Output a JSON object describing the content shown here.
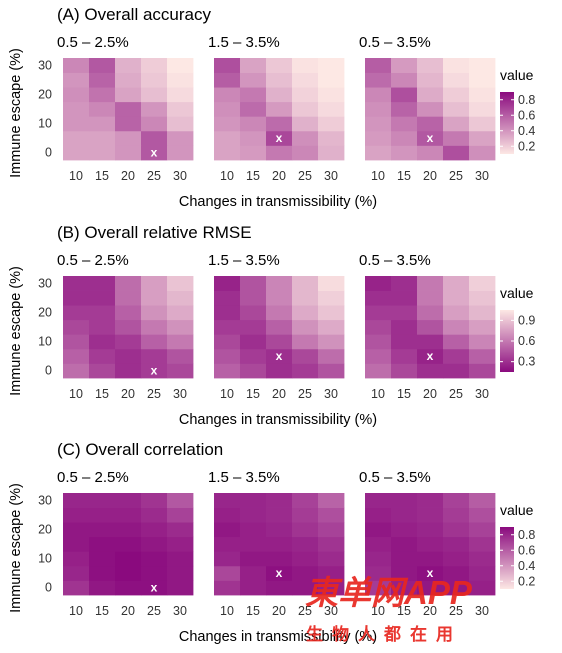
{
  "chart_data": [
    {
      "type": "heatmap",
      "title": "(A) Overall accuracy",
      "xlabel": "Changes in transmissibility (%)",
      "ylabel": "Immune escape (%)",
      "x": [
        "10",
        "15",
        "20",
        "25",
        "30"
      ],
      "y": [
        "0",
        "5",
        "10",
        "15",
        "20",
        "25",
        "30"
      ],
      "yticks": [
        "0",
        "10",
        "20",
        "30"
      ],
      "legend_title": "value",
      "legend_ticks": [
        "0.2",
        "0.4",
        "0.6",
        "0.8"
      ],
      "legend_range": [
        0.1,
        0.9
      ],
      "color_low": "#fde8e4",
      "color_high": "#8a0a7e",
      "marker_symbol": "x",
      "panels": [
        {
          "facet": "0.5 – 2.5%",
          "marker": {
            "x": "25",
            "y": "0"
          },
          "values": [
            [
              0.35,
              0.35,
              0.4,
              0.62,
              0.4
            ],
            [
              0.35,
              0.35,
              0.4,
              0.62,
              0.4
            ],
            [
              0.4,
              0.4,
              0.58,
              0.45,
              0.25
            ],
            [
              0.4,
              0.45,
              0.58,
              0.4,
              0.22
            ],
            [
              0.42,
              0.52,
              0.35,
              0.25,
              0.15
            ],
            [
              0.4,
              0.58,
              0.32,
              0.22,
              0.12
            ],
            [
              0.45,
              0.62,
              0.3,
              0.2,
              0.1
            ]
          ]
        },
        {
          "facet": "1.5 – 3.5%",
          "marker": {
            "x": "20",
            "y": "5"
          },
          "values": [
            [
              0.35,
              0.38,
              0.5,
              0.45,
              0.3
            ],
            [
              0.35,
              0.4,
              0.68,
              0.42,
              0.28
            ],
            [
              0.4,
              0.45,
              0.55,
              0.3,
              0.2
            ],
            [
              0.42,
              0.55,
              0.38,
              0.22,
              0.15
            ],
            [
              0.45,
              0.5,
              0.3,
              0.18,
              0.12
            ],
            [
              0.6,
              0.4,
              0.25,
              0.15,
              0.1
            ],
            [
              0.65,
              0.35,
              0.22,
              0.12,
              0.1
            ]
          ]
        },
        {
          "facet": "0.5 – 3.5%",
          "marker": {
            "x": "20",
            "y": "5"
          },
          "values": [
            [
              0.35,
              0.4,
              0.45,
              0.65,
              0.42
            ],
            [
              0.38,
              0.45,
              0.62,
              0.5,
              0.35
            ],
            [
              0.4,
              0.5,
              0.58,
              0.35,
              0.22
            ],
            [
              0.42,
              0.58,
              0.42,
              0.25,
              0.15
            ],
            [
              0.45,
              0.65,
              0.32,
              0.2,
              0.12
            ],
            [
              0.55,
              0.45,
              0.28,
              0.15,
              0.1
            ],
            [
              0.6,
              0.38,
              0.25,
              0.12,
              0.1
            ]
          ]
        }
      ]
    },
    {
      "type": "heatmap",
      "title": "(B) Overall relative RMSE",
      "xlabel": "Changes in transmissibility (%)",
      "ylabel": "Immune escape (%)",
      "x": [
        "10",
        "15",
        "20",
        "25",
        "30"
      ],
      "y": [
        "0",
        "5",
        "10",
        "15",
        "20",
        "25",
        "30"
      ],
      "yticks": [
        "0",
        "10",
        "20",
        "30"
      ],
      "legend_title": "value",
      "legend_ticks": [
        "0.3",
        "0.6",
        "0.9"
      ],
      "legend_range": [
        0.15,
        1.05
      ],
      "color_low": "#8a0a7e",
      "color_high": "#fde8e4",
      "marker_symbol": "x",
      "panels": [
        {
          "facet": "0.5 – 2.5%",
          "marker": {
            "x": "25",
            "y": "0"
          },
          "values": [
            [
              0.55,
              0.4,
              0.3,
              0.35,
              0.4
            ],
            [
              0.5,
              0.35,
              0.3,
              0.35,
              0.45
            ],
            [
              0.45,
              0.3,
              0.35,
              0.5,
              0.6
            ],
            [
              0.4,
              0.35,
              0.45,
              0.6,
              0.7
            ],
            [
              0.35,
              0.35,
              0.5,
              0.7,
              0.8
            ],
            [
              0.3,
              0.3,
              0.55,
              0.75,
              0.85
            ],
            [
              0.3,
              0.3,
              0.55,
              0.75,
              0.9
            ]
          ]
        },
        {
          "facet": "1.5 – 3.5%",
          "marker": {
            "x": "20",
            "y": "5"
          },
          "values": [
            [
              0.5,
              0.4,
              0.3,
              0.35,
              0.45
            ],
            [
              0.45,
              0.35,
              0.3,
              0.4,
              0.55
            ],
            [
              0.4,
              0.3,
              0.4,
              0.6,
              0.7
            ],
            [
              0.35,
              0.35,
              0.5,
              0.7,
              0.8
            ],
            [
              0.3,
              0.4,
              0.6,
              0.8,
              0.9
            ],
            [
              0.3,
              0.45,
              0.65,
              0.85,
              0.95
            ],
            [
              0.25,
              0.45,
              0.65,
              0.85,
              1.0
            ]
          ]
        },
        {
          "facet": "0.5 – 3.5%",
          "marker": {
            "x": "20",
            "y": "5"
          },
          "values": [
            [
              0.55,
              0.4,
              0.3,
              0.3,
              0.4
            ],
            [
              0.5,
              0.35,
              0.25,
              0.35,
              0.5
            ],
            [
              0.45,
              0.3,
              0.3,
              0.5,
              0.65
            ],
            [
              0.4,
              0.3,
              0.45,
              0.65,
              0.75
            ],
            [
              0.35,
              0.35,
              0.55,
              0.75,
              0.85
            ],
            [
              0.3,
              0.3,
              0.6,
              0.8,
              0.9
            ],
            [
              0.25,
              0.3,
              0.6,
              0.8,
              0.95
            ]
          ]
        }
      ]
    },
    {
      "type": "heatmap",
      "title": "(C) Overall correlation",
      "xlabel": "Changes in transmissibility (%)",
      "ylabel": "Immune escape (%)",
      "x": [
        "10",
        "15",
        "20",
        "25",
        "30"
      ],
      "y": [
        "0",
        "5",
        "10",
        "15",
        "20",
        "25",
        "30"
      ],
      "yticks": [
        "0",
        "10",
        "20",
        "30"
      ],
      "legend_title": "value",
      "legend_ticks": [
        "0.2",
        "0.4",
        "0.6",
        "0.8"
      ],
      "legend_range": [
        0.1,
        0.9
      ],
      "color_low": "#fde8e4",
      "color_high": "#8a0a7e",
      "marker_symbol": "x",
      "panels": [
        {
          "facet": "0.5 – 2.5%",
          "marker": {
            "x": "25",
            "y": "0"
          },
          "values": [
            [
              0.75,
              0.85,
              0.88,
              0.88,
              0.85
            ],
            [
              0.8,
              0.88,
              0.9,
              0.88,
              0.85
            ],
            [
              0.82,
              0.88,
              0.9,
              0.88,
              0.85
            ],
            [
              0.85,
              0.88,
              0.88,
              0.85,
              0.82
            ],
            [
              0.85,
              0.85,
              0.85,
              0.82,
              0.78
            ],
            [
              0.82,
              0.82,
              0.82,
              0.78,
              0.7
            ],
            [
              0.8,
              0.8,
              0.8,
              0.75,
              0.62
            ]
          ]
        },
        {
          "facet": "1.5 – 3.5%",
          "marker": {
            "x": "20",
            "y": "5"
          },
          "values": [
            [
              0.75,
              0.82,
              0.85,
              0.85,
              0.82
            ],
            [
              0.68,
              0.82,
              0.88,
              0.85,
              0.82
            ],
            [
              0.8,
              0.85,
              0.85,
              0.82,
              0.78
            ],
            [
              0.82,
              0.82,
              0.82,
              0.8,
              0.75
            ],
            [
              0.85,
              0.82,
              0.8,
              0.75,
              0.7
            ],
            [
              0.82,
              0.8,
              0.78,
              0.72,
              0.65
            ],
            [
              0.8,
              0.8,
              0.78,
              0.7,
              0.58
            ]
          ]
        },
        {
          "facet": "0.5 – 3.5%",
          "marker": {
            "x": "20",
            "y": "5"
          },
          "values": [
            [
              0.72,
              0.82,
              0.85,
              0.85,
              0.82
            ],
            [
              0.78,
              0.85,
              0.88,
              0.85,
              0.8
            ],
            [
              0.8,
              0.85,
              0.85,
              0.82,
              0.78
            ],
            [
              0.82,
              0.85,
              0.82,
              0.8,
              0.75
            ],
            [
              0.85,
              0.82,
              0.8,
              0.75,
              0.7
            ],
            [
              0.82,
              0.8,
              0.78,
              0.72,
              0.65
            ],
            [
              0.8,
              0.8,
              0.78,
              0.7,
              0.6
            ]
          ]
        }
      ]
    }
  ],
  "watermark": {
    "logo_text": "東单网APP",
    "tagline": "生物人都在用"
  }
}
